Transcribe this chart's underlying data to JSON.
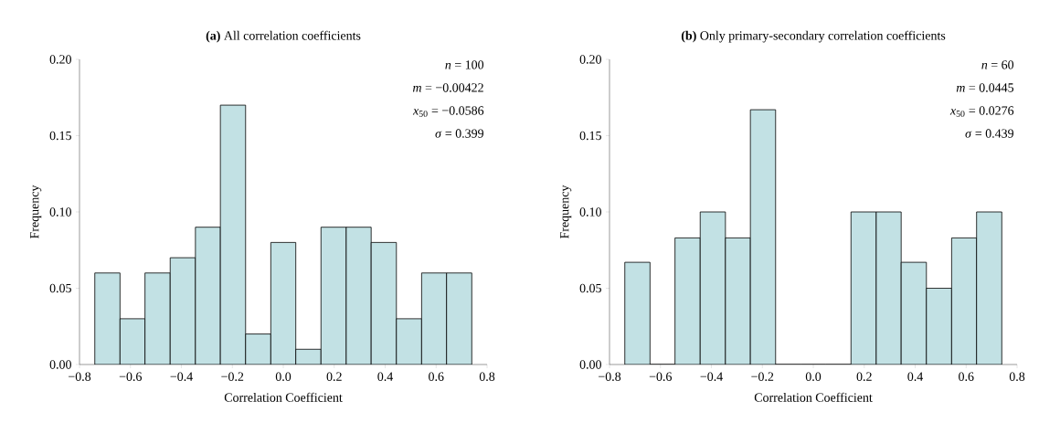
{
  "chart_data": [
    {
      "type": "histogram",
      "title": "**(a)** All correlation coefficients",
      "xlabel": "Correlation Coefficient",
      "ylabel": "Frequency",
      "bins": [
        -0.74,
        -0.641,
        -0.543,
        -0.444,
        -0.345,
        -0.247,
        -0.148,
        -0.049,
        0.049,
        0.148,
        0.247,
        0.345,
        0.444,
        0.543,
        0.641,
        0.74
      ],
      "values": [
        0.06,
        0.03,
        0.06,
        0.07,
        0.09,
        0.17,
        0.02,
        0.08,
        0.01,
        0.09,
        0.09,
        0.08,
        0.03,
        0.06,
        0.06
      ],
      "color": "#c2e1e4",
      "xlim": [
        -0.8,
        0.8
      ],
      "ylim": [
        0,
        0.2
      ],
      "xticks": [
        {
          "value": -0.8,
          "label": "−0.8"
        },
        {
          "value": -0.6,
          "label": "−0.6"
        },
        {
          "value": -0.4,
          "label": "−0.4"
        },
        {
          "value": -0.2,
          "label": "−0.2"
        },
        {
          "value": 0,
          "label": "0.0"
        },
        {
          "value": 0.2,
          "label": "0.2"
        },
        {
          "value": 0.4,
          "label": "0.4"
        },
        {
          "value": 0.6,
          "label": "0.6"
        },
        {
          "value": 0.8,
          "label": "0.8"
        }
      ],
      "yticks": [
        {
          "value": 0,
          "label": "0.00"
        },
        {
          "value": 0.05,
          "label": "0.05"
        },
        {
          "value": 0.1,
          "label": "0.10"
        },
        {
          "value": 0.15,
          "label": "0.15"
        },
        {
          "value": 0.2,
          "label": "0.20"
        }
      ],
      "annotations": [
        "*n* = 100",
        "*m* = −0.00422",
        "*x*$_{50}$ = −0.0586",
        "*σ* = 0.399"
      ]
    },
    {
      "type": "histogram",
      "title": "**(b)** Only primary-secondary correlation coefficients",
      "xlabel": "Correlation Coefficient",
      "ylabel": "Frequency",
      "bins": [
        -0.74,
        -0.641,
        -0.543,
        -0.444,
        -0.345,
        -0.247,
        -0.148,
        -0.049,
        0.049,
        0.148,
        0.247,
        0.345,
        0.444,
        0.543,
        0.641,
        0.74
      ],
      "values": [
        0.067,
        0,
        0.083,
        0.1,
        0.083,
        0.167,
        0,
        0,
        0,
        0.1,
        0.1,
        0.067,
        0.05,
        0.083,
        0.1
      ],
      "color": "#c2e1e4",
      "xlim": [
        -0.8,
        0.8
      ],
      "ylim": [
        0,
        0.2
      ],
      "xticks": [
        {
          "value": -0.8,
          "label": "−0.8"
        },
        {
          "value": -0.6,
          "label": "−0.6"
        },
        {
          "value": -0.4,
          "label": "−0.4"
        },
        {
          "value": -0.2,
          "label": "−0.2"
        },
        {
          "value": 0,
          "label": "0.0"
        },
        {
          "value": 0.2,
          "label": "0.2"
        },
        {
          "value": 0.4,
          "label": "0.4"
        },
        {
          "value": 0.6,
          "label": "0.6"
        },
        {
          "value": 0.8,
          "label": "0.8"
        }
      ],
      "yticks": [
        {
          "value": 0,
          "label": "0.00"
        },
        {
          "value": 0.05,
          "label": "0.05"
        },
        {
          "value": 0.1,
          "label": "0.10"
        },
        {
          "value": 0.15,
          "label": "0.15"
        },
        {
          "value": 0.2,
          "label": "0.20"
        }
      ],
      "annotations": [
        "*n* = 60",
        "*m* = 0.0445",
        "*x*$_{50}$ = 0.0276",
        "*σ* = 0.439"
      ]
    }
  ]
}
